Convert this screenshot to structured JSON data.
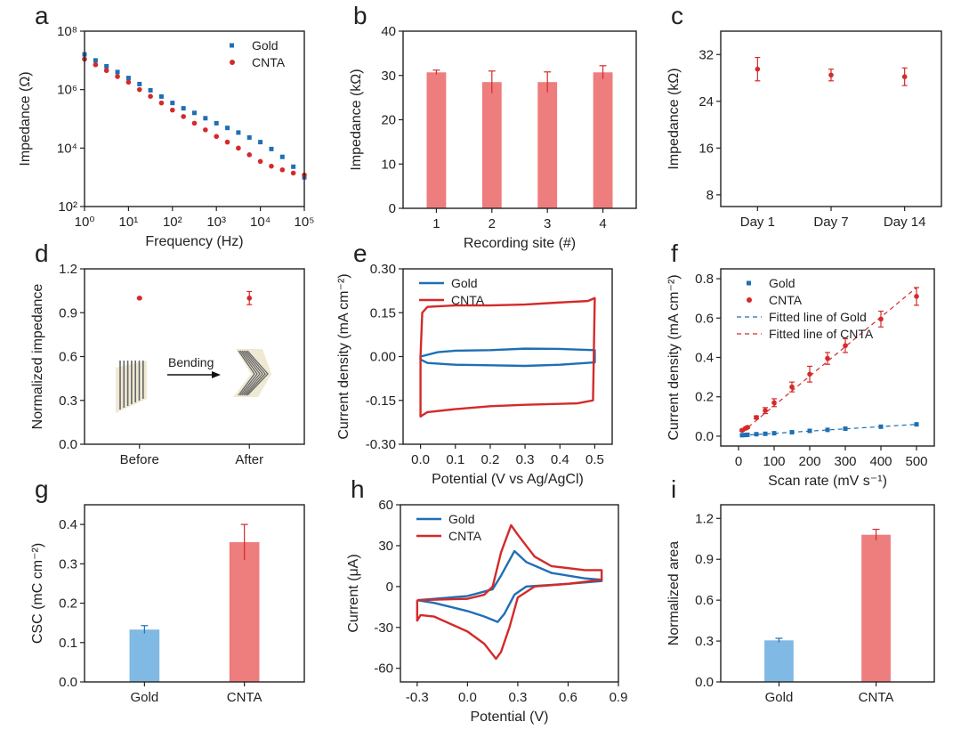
{
  "colors": {
    "red": "#d42a2a",
    "blue": "#1f6fb4",
    "bar_red": "#ee7d7d",
    "bar_blue": "#80b9e3"
  },
  "chart_data": [
    {
      "id": "a",
      "panel_label": "a",
      "type": "scatter",
      "xlabel": "Frequency (Hz)",
      "ylabel": "Impedance (Ω)",
      "xscale": "log",
      "yscale": "log",
      "xlim": [
        1,
        100000
      ],
      "ylim": [
        100,
        100000000
      ],
      "xticks": [
        1,
        10,
        100,
        1000,
        10000,
        100000
      ],
      "xtick_labels": [
        "10⁰",
        "10¹",
        "10²",
        "10³",
        "10⁴",
        "10⁵"
      ],
      "yticks": [
        100,
        10000,
        1000000,
        100000000
      ],
      "ytick_labels": [
        "10²",
        "10⁴",
        "10⁶",
        "10⁸"
      ],
      "legend": "top-right",
      "legend_style": "marker",
      "series": [
        {
          "name": "Gold",
          "color": "blue",
          "marker": "square",
          "x": [
            1,
            1.78,
            3.16,
            5.62,
            10,
            17.8,
            31.6,
            56.2,
            100,
            178,
            316,
            562,
            1000,
            1778,
            3162,
            5623,
            10000,
            17783,
            31623,
            56234,
            100000
          ],
          "y": [
            16000000.0,
            10000000.0,
            6300000.0,
            4000000.0,
            2500000.0,
            1550000.0,
            950000.0,
            580000.0,
            350000.0,
            230000.0,
            160000.0,
            105000.0,
            71000.0,
            49000.0,
            34000.0,
            23000.0,
            16000.0,
            9300.0,
            5000.0,
            2300.0,
            1000.0
          ]
        },
        {
          "name": "CNTA",
          "color": "red",
          "marker": "circle",
          "x": [
            1,
            1.78,
            3.16,
            5.62,
            10,
            17.8,
            31.6,
            56.2,
            100,
            178,
            316,
            562,
            1000,
            1778,
            3162,
            5623,
            10000,
            17783,
            31623,
            56234,
            100000
          ],
          "y": [
            11000000.0,
            7100000.0,
            4500000.0,
            2800000.0,
            1800000.0,
            1000000.0,
            590000.0,
            350000.0,
            200000.0,
            120000.0,
            71000.0,
            42000.0,
            25000.0,
            16000.0,
            10000.0,
            5900.0,
            3500.0,
            2400.0,
            1800.0,
            1400.0,
            1200.0
          ]
        }
      ]
    },
    {
      "id": "b",
      "panel_label": "b",
      "type": "bar",
      "xlabel": "Recording site (#)",
      "ylabel": "Impedance (kΩ)",
      "xlim": [
        0.4,
        4.6
      ],
      "ylim": [
        0,
        40
      ],
      "xticks": [
        1,
        2,
        3,
        4
      ],
      "xtick_labels": [
        "1",
        "2",
        "3",
        "4"
      ],
      "yticks": [
        0,
        10,
        20,
        30,
        40
      ],
      "ytick_labels": [
        "0",
        "10",
        "20",
        "30",
        "40"
      ],
      "bar_width": 0.35,
      "series": [
        {
          "color": "bar_red",
          "err_color": "red",
          "x": [
            1,
            2,
            3,
            4
          ],
          "y": [
            30.7,
            28.5,
            28.5,
            30.7
          ],
          "err": [
            0.5,
            2.5,
            2.3,
            1.5
          ]
        }
      ]
    },
    {
      "id": "c",
      "panel_label": "c",
      "type": "scatter",
      "xlabel": "",
      "ylabel": "Impedance (kΩ)",
      "xlim": [
        0.5,
        3.5
      ],
      "ylim": [
        6,
        36
      ],
      "xticks": [
        1,
        2,
        3
      ],
      "xtick_labels": [
        "Day 1",
        "Day 7",
        "Day 14"
      ],
      "yticks": [
        8,
        16,
        24,
        32
      ],
      "ytick_labels": [
        "8",
        "16",
        "24",
        "32"
      ],
      "series": [
        {
          "color": "red",
          "marker": "circle",
          "x": [
            1,
            2,
            3
          ],
          "y": [
            29.5,
            28.5,
            28.2
          ],
          "err": [
            2.0,
            1.0,
            1.5
          ]
        }
      ]
    },
    {
      "id": "d",
      "panel_label": "d",
      "type": "scatter",
      "xlabel": "",
      "ylabel": "Normalized impedance",
      "xlim": [
        0.5,
        2.5
      ],
      "ylim": [
        0,
        1.2
      ],
      "xticks": [
        1,
        2
      ],
      "xtick_labels": [
        "Before",
        "After"
      ],
      "yticks": [
        0,
        0.3,
        0.6,
        0.9,
        1.2
      ],
      "ytick_labels": [
        "0.0",
        "0.3",
        "0.6",
        "0.9",
        "1.2"
      ],
      "annotation": "Bending",
      "series": [
        {
          "color": "red",
          "marker": "circle",
          "x": [
            1,
            2
          ],
          "y": [
            1.0,
            1.0
          ],
          "err": [
            0.005,
            0.045
          ]
        }
      ]
    },
    {
      "id": "e",
      "panel_label": "e",
      "type": "line",
      "xlabel": "Potential (V vs Ag/AgCl)",
      "ylabel": "Current density (mA cm⁻²)",
      "xlim": [
        -0.05,
        0.55
      ],
      "ylim": [
        -0.3,
        0.3
      ],
      "xticks": [
        0,
        0.1,
        0.2,
        0.3,
        0.4,
        0.5
      ],
      "xtick_labels": [
        "0.0",
        "0.1",
        "0.2",
        "0.3",
        "0.4",
        "0.5"
      ],
      "yticks": [
        -0.3,
        -0.15,
        0,
        0.15,
        0.3
      ],
      "ytick_labels": [
        "-0.30",
        "-0.15",
        "0.00",
        "0.15",
        "0.30"
      ],
      "legend": "top-left",
      "legend_style": "line",
      "series": [
        {
          "name": "Gold",
          "color": "blue",
          "x": [
            0,
            0.05,
            0.1,
            0.2,
            0.3,
            0.4,
            0.5,
            0.5,
            0.4,
            0.3,
            0.2,
            0.1,
            0.02,
            0,
            0
          ],
          "y": [
            0,
            0.015,
            0.02,
            0.022,
            0.027,
            0.026,
            0.022,
            -0.02,
            -0.028,
            -0.032,
            -0.03,
            -0.028,
            -0.022,
            -0.01,
            0
          ]
        },
        {
          "name": "CNTA",
          "color": "red",
          "x": [
            0,
            0.005,
            0.02,
            0.1,
            0.2,
            0.3,
            0.4,
            0.48,
            0.5,
            0.495,
            0.45,
            0.3,
            0.2,
            0.1,
            0.02,
            0,
            0
          ],
          "y": [
            0,
            0.15,
            0.17,
            0.175,
            0.175,
            0.178,
            0.185,
            0.19,
            0.2,
            -0.15,
            -0.16,
            -0.165,
            -0.17,
            -0.18,
            -0.19,
            -0.205,
            0
          ]
        }
      ]
    },
    {
      "id": "f",
      "panel_label": "f",
      "type": "scatter",
      "xlabel": "Scan rate (mV s⁻¹)",
      "ylabel": "Current density (mA cm⁻²)",
      "xlim": [
        -50,
        550
      ],
      "ylim": [
        -0.05,
        0.85
      ],
      "xticks": [
        0,
        100,
        200,
        300,
        400,
        500
      ],
      "xtick_labels": [
        "0",
        "100",
        "200",
        "300",
        "400",
        "500"
      ],
      "yticks": [
        0,
        0.2,
        0.4,
        0.6,
        0.8
      ],
      "ytick_labels": [
        "0.0",
        "0.2",
        "0.4",
        "0.6",
        "0.8"
      ],
      "legend": "top-left",
      "legend_style": "mixed",
      "series": [
        {
          "name": "Gold",
          "color": "blue",
          "marker": "square",
          "x": [
            10,
            20,
            25,
            50,
            75,
            100,
            150,
            200,
            250,
            300,
            400,
            500
          ],
          "y": [
            0.005,
            0.006,
            0.007,
            0.01,
            0.012,
            0.015,
            0.02,
            0.027,
            0.032,
            0.038,
            0.048,
            0.06
          ]
        },
        {
          "name": "CNTA",
          "color": "red",
          "marker": "circle",
          "x": [
            10,
            20,
            25,
            50,
            75,
            100,
            150,
            200,
            250,
            300,
            400,
            500
          ],
          "y": [
            0.03,
            0.04,
            0.045,
            0.095,
            0.13,
            0.17,
            0.25,
            0.315,
            0.395,
            0.46,
            0.595,
            0.71
          ],
          "err": [
            0.005,
            0.005,
            0.005,
            0.008,
            0.015,
            0.02,
            0.025,
            0.04,
            0.03,
            0.035,
            0.04,
            0.045
          ]
        },
        {
          "name": "Fitted line of Gold",
          "color": "blue",
          "line": "dashed",
          "x": [
            10,
            500
          ],
          "y": [
            0.004,
            0.06
          ]
        },
        {
          "name": "Fitted line of CNTA",
          "color": "red",
          "line": "dashed",
          "x": [
            10,
            500
          ],
          "y": [
            0.02,
            0.755
          ]
        }
      ]
    },
    {
      "id": "g",
      "panel_label": "g",
      "type": "bar",
      "xlabel": "",
      "ylabel": "CSC (mC cm⁻²)",
      "xlim": [
        0.4,
        2.6
      ],
      "ylim": [
        0,
        0.45
      ],
      "xticks": [
        1,
        2
      ],
      "xtick_labels": [
        "Gold",
        "CNTA"
      ],
      "yticks": [
        0,
        0.1,
        0.2,
        0.3,
        0.4
      ],
      "ytick_labels": [
        "0.0",
        "0.1",
        "0.2",
        "0.3",
        "0.4"
      ],
      "bar_width": 0.3,
      "series": [
        {
          "colors": [
            "bar_blue",
            "bar_red"
          ],
          "err_colors": [
            "blue",
            "red"
          ],
          "x": [
            1,
            2
          ],
          "y": [
            0.133,
            0.355
          ],
          "err": [
            0.01,
            0.045
          ]
        }
      ]
    },
    {
      "id": "h",
      "panel_label": "h",
      "type": "line",
      "xlabel": "Potential (V)",
      "ylabel": "Current (μA)",
      "xlim": [
        -0.4,
        0.9
      ],
      "ylim": [
        -70,
        60
      ],
      "xticks": [
        -0.3,
        0,
        0.3,
        0.6,
        0.9
      ],
      "xtick_labels": [
        "-0.3",
        "0.0",
        "0.3",
        "0.6",
        "0.9"
      ],
      "yticks": [
        -60,
        -30,
        0,
        30,
        60
      ],
      "ytick_labels": [
        "-60",
        "-30",
        "0",
        "30",
        "60"
      ],
      "legend": "top-left",
      "legend_style": "line",
      "series": [
        {
          "name": "Gold",
          "color": "blue",
          "x": [
            -0.3,
            0,
            0.15,
            0.2,
            0.28,
            0.35,
            0.5,
            0.7,
            0.8,
            0.8,
            0.6,
            0.35,
            0.28,
            0.22,
            0.18,
            0.1,
            0,
            -0.2,
            -0.3
          ],
          "y": [
            -10,
            -7,
            -2,
            8,
            26,
            18,
            10,
            6,
            5,
            4,
            2,
            0,
            -6,
            -20,
            -26,
            -22,
            -18,
            -12,
            -10
          ]
        },
        {
          "name": "CNTA",
          "color": "red",
          "x": [
            -0.3,
            0,
            0.1,
            0.15,
            0.2,
            0.26,
            0.3,
            0.4,
            0.5,
            0.7,
            0.8,
            0.8,
            0.6,
            0.4,
            0.3,
            0.25,
            0.2,
            0.17,
            0.1,
            0,
            -0.2,
            -0.28,
            -0.3,
            -0.3
          ],
          "y": [
            -10,
            -9,
            -6,
            0,
            25,
            45,
            38,
            22,
            15,
            12,
            12,
            5,
            2,
            0,
            -8,
            -30,
            -48,
            -53,
            -42,
            -33,
            -22,
            -21,
            -25,
            -10
          ]
        }
      ]
    },
    {
      "id": "i",
      "panel_label": "i",
      "type": "bar",
      "xlabel": "",
      "ylabel": "Normalized area",
      "xlim": [
        0.4,
        2.6
      ],
      "ylim": [
        0,
        1.3
      ],
      "xticks": [
        1,
        2
      ],
      "xtick_labels": [
        "Gold",
        "CNTA"
      ],
      "yticks": [
        0,
        0.3,
        0.6,
        0.9,
        1.2
      ],
      "ytick_labels": [
        "0.0",
        "0.3",
        "0.6",
        "0.9",
        "1.2"
      ],
      "bar_width": 0.3,
      "series": [
        {
          "colors": [
            "bar_blue",
            "bar_red"
          ],
          "err_colors": [
            "blue",
            "red"
          ],
          "x": [
            1,
            2
          ],
          "y": [
            0.305,
            1.08
          ],
          "err": [
            0.015,
            0.04
          ]
        }
      ]
    }
  ]
}
